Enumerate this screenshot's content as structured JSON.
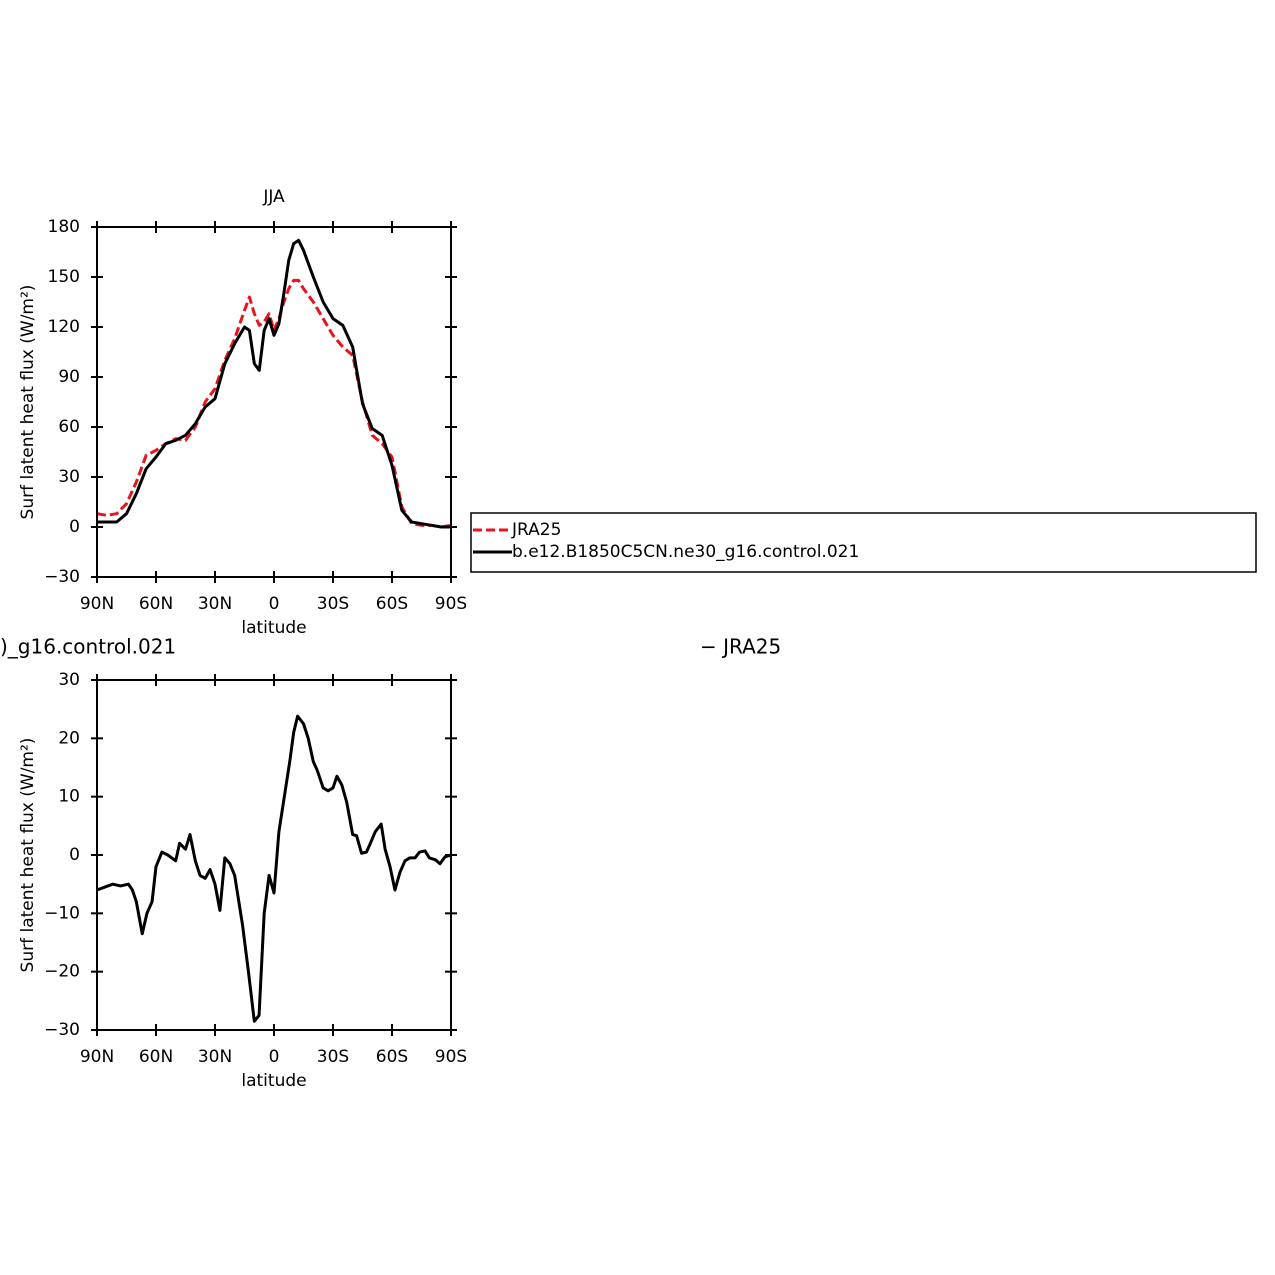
{
  "chart_data": [
    {
      "type": "line",
      "title": "JJA",
      "xlabel": "latitude",
      "ylabel": "Surf latent heat flux (W/m²)",
      "x": [
        90,
        85,
        80,
        75,
        70,
        65,
        60,
        55,
        50,
        45,
        40,
        35,
        30,
        25,
        20,
        15,
        12.5,
        10,
        7.5,
        5,
        2.5,
        0,
        -2.5,
        -5,
        -7.5,
        -10,
        -12.5,
        -15,
        -20,
        -25,
        -30,
        -35,
        -40,
        -45,
        -50,
        -55,
        -60,
        -65,
        -70,
        -75,
        -80,
        -85,
        -90
      ],
      "xlim": [
        90,
        -90
      ],
      "xticks": [
        {
          "value": 90,
          "label": "90N"
        },
        {
          "value": 60,
          "label": "60N"
        },
        {
          "value": 30,
          "label": "30N"
        },
        0,
        {
          "value": -30,
          "label": "30S"
        },
        {
          "value": -60,
          "label": "60S"
        },
        {
          "value": -90,
          "label": "90S"
        }
      ],
      "ylim": [
        -30,
        180
      ],
      "yticks": [
        {
          "value": -30,
          "label": "−30"
        },
        0,
        30,
        60,
        90,
        120,
        150,
        180
      ],
      "legend": "right",
      "series": [
        {
          "name": "JRA25",
          "color": "#e8141e",
          "line_style": "dashed",
          "values": [
            8,
            7,
            8,
            14,
            27,
            43,
            46,
            50,
            53,
            52,
            60,
            75,
            83,
            100,
            113,
            130,
            138,
            128,
            121,
            123,
            128,
            118,
            125,
            135,
            143,
            148,
            148,
            143,
            135,
            125,
            115,
            108,
            103,
            75,
            55,
            50,
            42,
            12,
            2,
            1,
            1,
            0,
            1
          ]
        },
        {
          "name": "b.e12.B1850C5CN.ne30_g16.control.021",
          "color": "#000000",
          "line_style": "solid",
          "values": [
            3,
            3,
            3,
            8,
            20,
            35,
            42,
            50,
            52,
            55,
            62,
            72,
            77,
            98,
            110,
            120,
            118,
            98,
            94,
            118,
            125,
            115,
            122,
            140,
            160,
            170,
            172,
            166,
            150,
            135,
            125,
            121,
            108,
            74,
            59,
            55,
            37,
            10,
            3,
            2,
            1,
            0,
            0
          ]
        }
      ]
    },
    {
      "type": "line",
      "title": [
        ")_g16.control.021",
        "− JRA25"
      ],
      "xlabel": "latitude",
      "ylabel": "Surf latent heat flux (W/m²)",
      "x": [
        90,
        86,
        82,
        78,
        74,
        72,
        70,
        67,
        64.6,
        62,
        60,
        57,
        54,
        50,
        48,
        45,
        42.7,
        40,
        37.6,
        35,
        32.5,
        30,
        27.5,
        25,
        22.4,
        20,
        16,
        13,
        10,
        7.6,
        5,
        2.5,
        0,
        -2.5,
        -8,
        -10,
        -12,
        -15,
        -17.4,
        -20,
        -22,
        -25,
        -27.5,
        -30,
        -32,
        -34.5,
        -37,
        -40,
        -42,
        -44.5,
        -47,
        -49,
        -51.5,
        -54.5,
        -56.5,
        -59,
        -61.5,
        -64,
        -66.6,
        -69,
        -71.7,
        -74,
        -76.8,
        -79,
        -82,
        -84.4,
        -87,
        -90
      ],
      "xlim": [
        90,
        -90
      ],
      "xticks": [
        {
          "value": 90,
          "label": "90N"
        },
        {
          "value": 60,
          "label": "60N"
        },
        {
          "value": 30,
          "label": "30N"
        },
        0,
        {
          "value": -30,
          "label": "30S"
        },
        {
          "value": -60,
          "label": "60S"
        },
        {
          "value": -90,
          "label": "90S"
        }
      ],
      "ylim": [
        -30,
        30
      ],
      "yticks": [
        {
          "value": -30,
          "label": "−30"
        },
        {
          "value": -20,
          "label": "−20"
        },
        {
          "value": -10,
          "label": "−10"
        },
        0,
        10,
        20,
        30
      ],
      "series": [
        {
          "color": "#000000",
          "line_style": "solid",
          "values": [
            -6,
            -5.5,
            -5,
            -5.3,
            -5,
            -6,
            -8,
            -13.5,
            -10,
            -8,
            -2,
            0.5,
            0,
            -1,
            2,
            1,
            3.5,
            -1,
            -3.5,
            -4,
            -2.5,
            -5,
            -9.5,
            -0.5,
            -1.5,
            -3.5,
            -12,
            -20,
            -28.5,
            -27.5,
            -10,
            -3.5,
            -6.5,
            4,
            16,
            21,
            23.8,
            22.5,
            20,
            16,
            14.5,
            11.5,
            11,
            11.5,
            13.5,
            12,
            9,
            3.5,
            3.3,
            0.3,
            0.5,
            2,
            4,
            5.3,
            1,
            -2,
            -6,
            -3,
            -1,
            -0.5,
            -0.5,
            0.5,
            0.7,
            -0.5,
            -0.8,
            -1.5,
            -0.3,
            0
          ]
        }
      ]
    }
  ]
}
